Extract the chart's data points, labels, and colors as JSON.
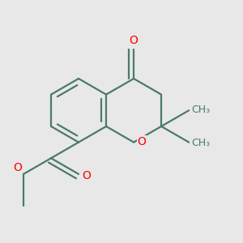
{
  "bg_color": "#e8e8e8",
  "bond_color": "#4a7a6a",
  "atom_color_O": "#ff0000",
  "line_width": 1.6,
  "dbo_benz": 0.018,
  "dbo_ketone": 0.018,
  "dbo_ester": 0.018,
  "font_size": 10,
  "font_size_me": 9,
  "fig_size": [
    3.0,
    3.0
  ],
  "dpi": 100,
  "xlim": [
    0.05,
    0.85
  ],
  "ylim": [
    0.08,
    0.95
  ]
}
